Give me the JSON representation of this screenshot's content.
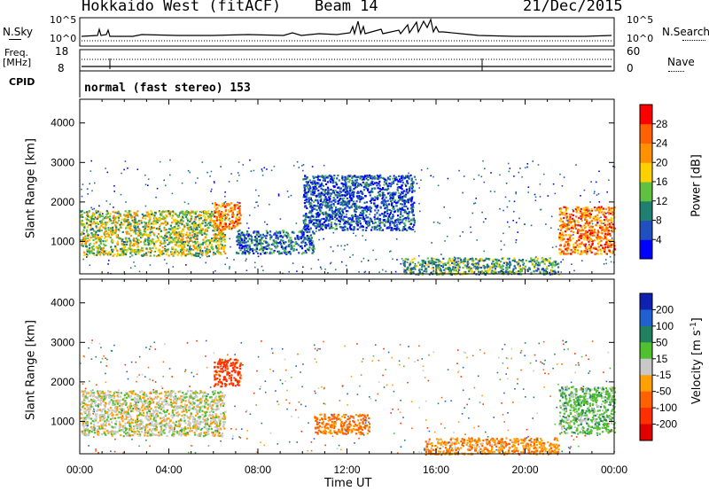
{
  "header": {
    "station": "Hokkaido West (fitACF)",
    "beam": "Beam 14",
    "date": "21/Dec/2015"
  },
  "strip": {
    "nsky_label": "N.Sky",
    "nsearch_label": "N.Search",
    "noise_ticks": [
      "10^5",
      "10^0"
    ],
    "freq_label_line1": "Freq.",
    "freq_label_line2": "[MHz]",
    "freq_ticks": [
      "18",
      "8"
    ],
    "nave_label": "Nave",
    "nave_ticks": [
      "60",
      "0"
    ],
    "cpid_label": "CPID",
    "cpid_value": "normal (fast stereo) 153"
  },
  "x_axis": {
    "label": "Time UT",
    "ticks": [
      "00:00",
      "04:00",
      "08:00",
      "12:00",
      "16:00",
      "20:00",
      "00:00"
    ],
    "range_hours": [
      0,
      24
    ]
  },
  "y_axis": {
    "label": "Slant Range [km]",
    "ticks": [
      "1000",
      "2000",
      "3000",
      "4000"
    ],
    "range_km": [
      180,
      4600
    ]
  },
  "power_colorbar": {
    "label": "Power [dB]",
    "ticks": [
      "4",
      "8",
      "12",
      "16",
      "20",
      "24",
      "28"
    ],
    "colors": [
      "#0000ff",
      "#2050c0",
      "#208070",
      "#60c040",
      "#ffd000",
      "#ff9000",
      "#ff6000",
      "#ff0000"
    ]
  },
  "velocity_colorbar": {
    "label_main": "Velocity [m s",
    "label_sup": "-1",
    "label_end": "]",
    "ticks": [
      "200",
      "100",
      "50",
      "15",
      "-15",
      "-50",
      "-100",
      "-200"
    ],
    "colors": [
      "#1020b0",
      "#2060d0",
      "#208060",
      "#50c030",
      "#c8c8c8",
      "#ffa000",
      "#ff6000",
      "#ff3000",
      "#e00000"
    ]
  },
  "chart_data": [
    {
      "type": "heatmap",
      "title": "Power",
      "xlabel": "Time UT",
      "ylabel": "Slant Range [km]",
      "xlim": [
        0,
        24
      ],
      "ylim": [
        180,
        4600
      ],
      "regions": [
        {
          "t": [
            0.0,
            6.5
          ],
          "r": [
            650,
            1800
          ],
          "value_db": 16
        },
        {
          "t": [
            6.0,
            7.2
          ],
          "r": [
            1300,
            2000
          ],
          "value_db": 24
        },
        {
          "t": [
            7.0,
            10.5
          ],
          "r": [
            700,
            1300
          ],
          "value_db": 8
        },
        {
          "t": [
            10.0,
            15.0
          ],
          "r": [
            1300,
            2700
          ],
          "value_db": 6
        },
        {
          "t": [
            14.5,
            21.5
          ],
          "r": [
            180,
            600
          ],
          "value_db": 12
        },
        {
          "t": [
            21.5,
            24.0
          ],
          "r": [
            700,
            1900
          ],
          "value_db": 24
        }
      ]
    },
    {
      "type": "heatmap",
      "title": "Velocity",
      "xlabel": "Time UT",
      "ylabel": "Slant Range [km]",
      "xlim": [
        0,
        24
      ],
      "ylim": [
        180,
        4600
      ],
      "regions": [
        {
          "t": [
            0.0,
            6.5
          ],
          "r": [
            650,
            1800
          ],
          "value_ms": 0
        },
        {
          "t": [
            6.0,
            7.2
          ],
          "r": [
            1900,
            2600
          ],
          "value_ms": -120
        },
        {
          "t": [
            10.5,
            13.0
          ],
          "r": [
            700,
            1200
          ],
          "value_ms": -60
        },
        {
          "t": [
            15.5,
            21.5
          ],
          "r": [
            180,
            600
          ],
          "value_ms": -40
        },
        {
          "t": [
            21.5,
            24.0
          ],
          "r": [
            700,
            1900
          ],
          "value_ms": 30
        }
      ]
    }
  ]
}
